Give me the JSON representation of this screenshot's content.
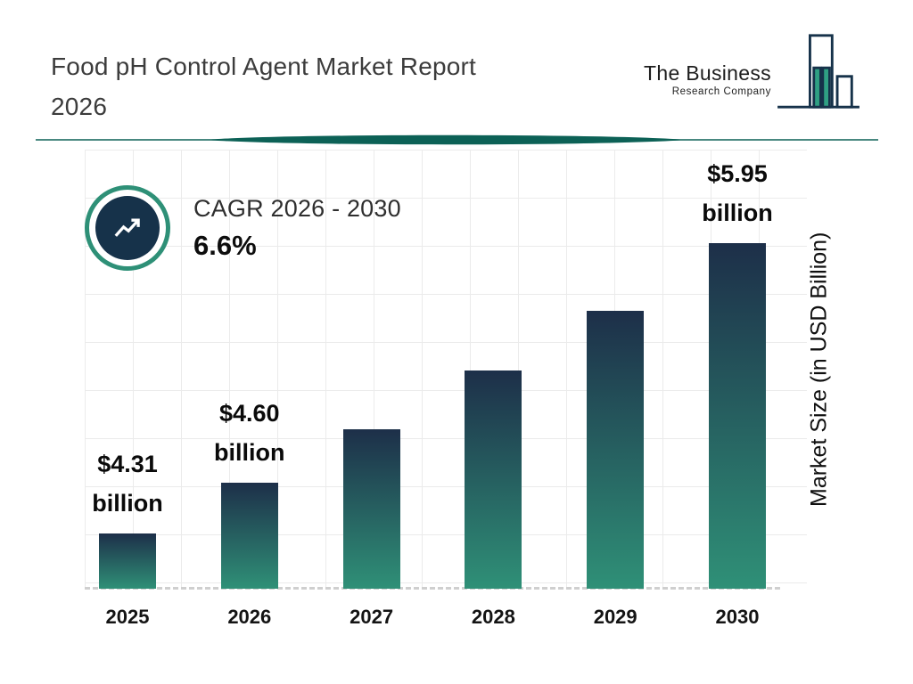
{
  "header": {
    "title_line1": "Food pH Control Agent Market Report",
    "title_line2": "2026"
  },
  "logo": {
    "name_line1": "The Business",
    "name_line2": "Research Company"
  },
  "cagr": {
    "label": "CAGR 2026 - 2030",
    "value": "6.6%"
  },
  "chart_data": {
    "type": "bar",
    "title": "Food pH Control Agent Market Report 2026",
    "categories": [
      "2025",
      "2026",
      "2027",
      "2028",
      "2029",
      "2030"
    ],
    "values": [
      4.31,
      4.6,
      4.9,
      5.23,
      5.57,
      5.95
    ],
    "value_labels": {
      "2025": {
        "line1": "$4.31",
        "line2": "billion"
      },
      "2026": {
        "line1": "$4.60",
        "line2": "billion"
      },
      "2030": {
        "line1": "$5.95",
        "line2": "billion"
      }
    },
    "xlabel": "",
    "ylabel": "Market Size (in USD Billion)",
    "ylim": [
      4.0,
      6.0
    ],
    "grid": true,
    "legend": false
  },
  "theme": {
    "divider_teal": "#0c6156",
    "ring_teal": "#2e9077",
    "navy": "#16324a",
    "bar_top": "#1d2f49",
    "bar_bottom": "#2f9077",
    "grid_line": "#ebebeb"
  }
}
